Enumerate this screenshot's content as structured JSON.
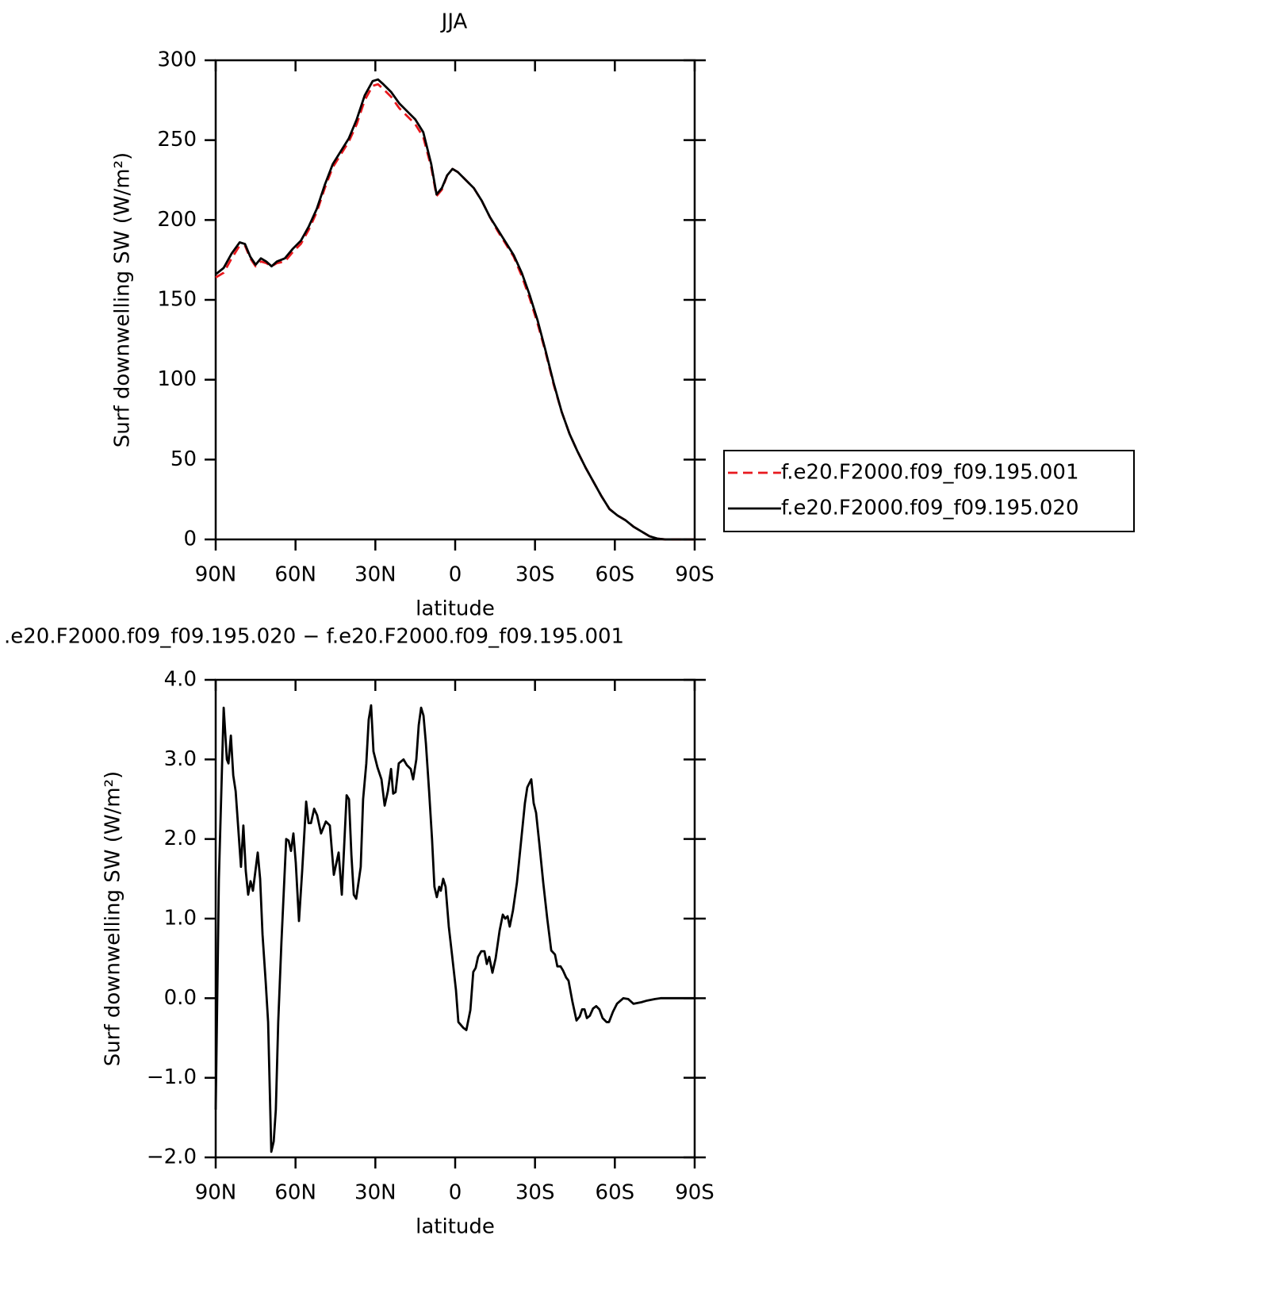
{
  "chart_data": [
    {
      "type": "line",
      "title": "JJA",
      "xlabel": "latitude",
      "ylabel": "Surf downwelling SW (W/m²)",
      "x": [
        90,
        87,
        84,
        81,
        79,
        77,
        75,
        73,
        71,
        69,
        67,
        64,
        61,
        58,
        55,
        52,
        49,
        46,
        43,
        40,
        37,
        34,
        31,
        29,
        27,
        24,
        21,
        18,
        15,
        12,
        9,
        7,
        5,
        3,
        1,
        -1,
        -4,
        -7,
        -10,
        -13,
        -16,
        -19,
        -22,
        -25,
        -28,
        -31,
        -34,
        -37,
        -40,
        -43,
        -46,
        -49,
        -52,
        -55,
        -58,
        -61,
        -64,
        -67,
        -70,
        -73,
        -76,
        -79,
        -82,
        -85,
        -88,
        -90
      ],
      "series": [
        {
          "name": "f.e20.F2000.f09_f09.195.001",
          "color": "#e8191e",
          "style": "dashed",
          "values": [
            164,
            167,
            176,
            184,
            184,
            176,
            171,
            174,
            173,
            171,
            173,
            174,
            180,
            185,
            194,
            205,
            220,
            233,
            241,
            249,
            260,
            275,
            284,
            285,
            282,
            277,
            270,
            265,
            260,
            252,
            233,
            215,
            219,
            228,
            232,
            230,
            225,
            220,
            212,
            202,
            193,
            185,
            177,
            165,
            151,
            135,
            117,
            97,
            80,
            66,
            55,
            45,
            36,
            27,
            19,
            15,
            12,
            8,
            5,
            2,
            0.5,
            0,
            0,
            0,
            0,
            0
          ]
        },
        {
          "name": "f.e20.F2000.f09_f09.195.020",
          "color": "#000000",
          "style": "solid",
          "values": [
            166,
            170,
            179,
            186,
            185,
            177,
            172,
            176,
            174,
            171,
            174,
            176,
            182,
            187,
            196,
            207,
            222,
            235,
            243,
            251,
            263,
            278,
            287,
            288,
            285,
            280,
            273,
            268,
            263,
            255,
            235,
            216,
            220,
            228,
            232,
            230,
            225,
            220,
            212,
            202,
            194,
            186,
            178,
            167,
            153,
            137,
            118,
            98,
            80,
            66,
            55,
            45,
            36,
            27,
            19,
            15,
            12,
            8,
            5,
            2,
            0.5,
            0,
            0,
            0,
            0,
            0
          ]
        }
      ],
      "xlim": [
        90,
        -90
      ],
      "xticks": [
        {
          "value": 90,
          "label": "90N"
        },
        {
          "value": 60,
          "label": "60N"
        },
        {
          "value": 30,
          "label": "30N"
        },
        0,
        {
          "value": -30,
          "label": "30S"
        },
        {
          "value": -60,
          "label": "60S"
        },
        {
          "value": -90,
          "label": "90S"
        }
      ],
      "ylim": [
        0,
        300
      ],
      "yticks": [
        0,
        50,
        100,
        150,
        200,
        250,
        300
      ],
      "legend": "right"
    },
    {
      "type": "line",
      "title": ".e20.F2000.f09_f09.195.020 − f.e20.F2000.f09_f09.195.001",
      "xlabel": "latitude",
      "ylabel": "Surf downwelling SW (W/m²)",
      "x": [
        90,
        88.8,
        87,
        85.8,
        85.2,
        84.3,
        83.4,
        82.5,
        80.5,
        79.6,
        78.7,
        77.8,
        76.9,
        76,
        74.2,
        73.3,
        72.4,
        71.2,
        70.3,
        69.1,
        68.2,
        67.4,
        66.5,
        65.3,
        63.5,
        62.6,
        61.7,
        60.8,
        59.9,
        58.7,
        57.5,
        56,
        55.1,
        54.2,
        53,
        51.9,
        50.4,
        48.6,
        47.1,
        45.6,
        43.8,
        42.6,
        40.8,
        39.9,
        39,
        38.1,
        37.2,
        35.5,
        34.6,
        33.4,
        32.5,
        31.6,
        30.7,
        29.2,
        27.7,
        26.5,
        25.3,
        24.1,
        23.3,
        22.4,
        21.2,
        19.4,
        18.2,
        16.7,
        15.8,
        14.6,
        13.7,
        12.8,
        11.9,
        11,
        9.8,
        8.7,
        7.8,
        6.9,
        6,
        5.4,
        4.5,
        3.6,
        2.4,
        1.2,
        -0.3,
        -1.2,
        -3,
        -4.2,
        -5.7,
        -6.8,
        -7.7,
        -8.6,
        -9.8,
        -11,
        -11.9,
        -12.8,
        -14,
        -15.2,
        -16.7,
        -17.9,
        -18.8,
        -19.7,
        -20.5,
        -21.7,
        -23.2,
        -24.4,
        -26.2,
        -27.1,
        -28.6,
        -29.5,
        -30.4,
        -31.6,
        -33.1,
        -34.6,
        -36.1,
        -37.5,
        -38.4,
        -39.6,
        -40.5,
        -41.7,
        -42.6,
        -44.1,
        -45.6,
        -46.8,
        -47.7,
        -48.6,
        -49.5,
        -50.6,
        -51.8,
        -53,
        -54.2,
        -55.4,
        -56.9,
        -57.8,
        -59.3,
        -60.8,
        -63.2,
        -65,
        -67,
        -70,
        -72.1,
        -75.1,
        -77.2,
        -90
      ],
      "series": [
        {
          "color": "#000000",
          "style": "solid",
          "values": [
            -1.4,
            1.5,
            3.65,
            3.0,
            2.95,
            3.3,
            2.8,
            2.6,
            1.65,
            2.17,
            1.6,
            1.3,
            1.47,
            1.35,
            1.83,
            1.5,
            0.8,
            0.2,
            -0.3,
            -1.93,
            -1.8,
            -1.4,
            -0.3,
            0.7,
            2.0,
            1.98,
            1.85,
            2.07,
            1.7,
            0.97,
            1.6,
            2.47,
            2.2,
            2.2,
            2.38,
            2.3,
            2.07,
            2.22,
            2.17,
            1.55,
            1.83,
            1.3,
            2.55,
            2.5,
            1.8,
            1.3,
            1.25,
            1.65,
            2.5,
            2.95,
            3.5,
            3.68,
            3.1,
            2.9,
            2.75,
            2.42,
            2.6,
            2.88,
            2.57,
            2.59,
            2.95,
            3.0,
            2.93,
            2.88,
            2.75,
            3.0,
            3.43,
            3.65,
            3.55,
            3.2,
            2.6,
            2.0,
            1.4,
            1.27,
            1.4,
            1.35,
            1.5,
            1.4,
            0.9,
            0.55,
            0.1,
            -0.3,
            -0.37,
            -0.4,
            -0.15,
            0.33,
            0.38,
            0.52,
            0.59,
            0.59,
            0.43,
            0.52,
            0.32,
            0.5,
            0.85,
            1.05,
            1.0,
            1.03,
            0.9,
            1.1,
            1.45,
            1.85,
            2.45,
            2.65,
            2.75,
            2.45,
            2.33,
            1.95,
            1.45,
            1.0,
            0.6,
            0.55,
            0.4,
            0.4,
            0.35,
            0.26,
            0.22,
            -0.05,
            -0.28,
            -0.23,
            -0.14,
            -0.14,
            -0.25,
            -0.22,
            -0.13,
            -0.1,
            -0.14,
            -0.25,
            -0.3,
            -0.3,
            -0.17,
            -0.07,
            0.0,
            -0.01,
            -0.07,
            -0.05,
            -0.03,
            -0.01,
            0.0,
            0.0
          ]
        }
      ],
      "xlim": [
        90,
        -90
      ],
      "xticks": [
        {
          "value": 90,
          "label": "90N"
        },
        {
          "value": 60,
          "label": "60N"
        },
        {
          "value": 30,
          "label": "30N"
        },
        0,
        {
          "value": -30,
          "label": "30S"
        },
        {
          "value": -60,
          "label": "60S"
        },
        {
          "value": -90,
          "label": "90S"
        }
      ],
      "ylim": [
        -2,
        4
      ],
      "yticks": [
        {
          "value": -2,
          "label": "−2.0"
        },
        {
          "value": -1,
          "label": "−1.0"
        },
        {
          "value": 0,
          "label": "0.0"
        },
        {
          "value": 1,
          "label": "1.0"
        },
        {
          "value": 2,
          "label": "2.0"
        },
        {
          "value": 3,
          "label": "3.0"
        },
        {
          "value": 4,
          "label": "4.0"
        }
      ]
    }
  ]
}
